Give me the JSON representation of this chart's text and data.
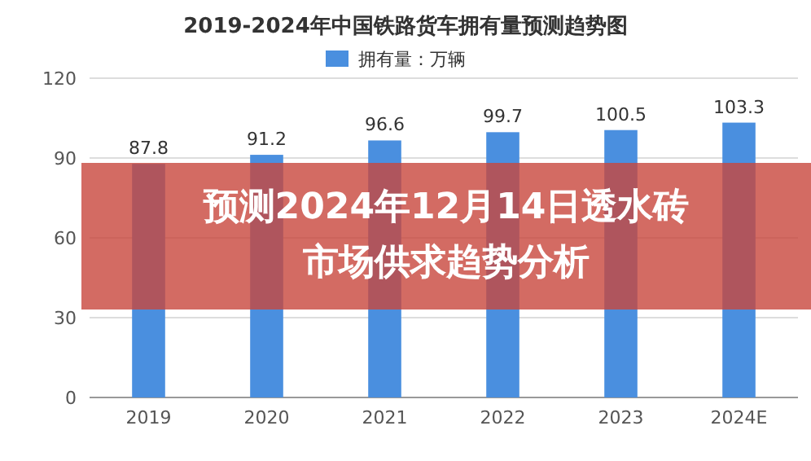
{
  "chart_data": {
    "type": "bar",
    "title": "2019-2024年中国铁路货车拥有量预测趋势图",
    "categories": [
      "2019",
      "2020",
      "2021",
      "2022",
      "2023",
      "2024E"
    ],
    "series": [
      {
        "name": "拥有量：万辆",
        "color": "#4a8fdf",
        "values": [
          87.8,
          91.2,
          96.6,
          99.7,
          100.5,
          103.3
        ]
      }
    ],
    "ylim": [
      0,
      120
    ],
    "yticks": [
      0,
      30,
      60,
      90,
      120
    ],
    "grid": "y",
    "legend": "top",
    "data_labels": true,
    "annotations": [
      "预测2024年12月14日透水砖市场供求趋势分析"
    ]
  }
}
